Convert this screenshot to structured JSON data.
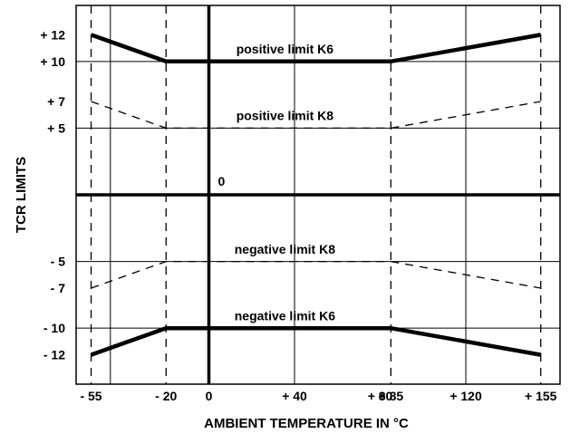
{
  "chart_data": {
    "type": "line",
    "xlabel": "AMBIENT TEMPERATURE IN °C",
    "ylabel": "TCR LIMITS",
    "xlim": [
      -62,
      164
    ],
    "ylim": [
      -14.2,
      14.2
    ],
    "x_ticks": [
      {
        "value": -55,
        "label": "- 55"
      },
      {
        "value": -20,
        "label": "- 20"
      },
      {
        "value": 0,
        "label": "0"
      },
      {
        "value": 40,
        "label": "+ 40"
      },
      {
        "value": 80,
        "label": "+ 80"
      },
      {
        "value": 85,
        "label": "+ 85"
      },
      {
        "value": 120,
        "label": "+ 120"
      },
      {
        "value": 155,
        "label": "+ 155"
      }
    ],
    "y_ticks": [
      {
        "value": 12,
        "label": "+ 12"
      },
      {
        "value": 10,
        "label": "+ 10"
      },
      {
        "value": 7,
        "label": "+ 7"
      },
      {
        "value": 5,
        "label": "+ 5"
      },
      {
        "value": -5,
        "label": "- 5"
      },
      {
        "value": -7,
        "label": "- 7"
      },
      {
        "value": -10,
        "label": "- 10"
      },
      {
        "value": -12,
        "label": "- 12"
      }
    ],
    "x_gridlines": [
      {
        "value": -55,
        "style": "dashed"
      },
      {
        "value": -20,
        "style": "dashed"
      },
      {
        "value": -46,
        "style": "solid"
      },
      {
        "value": 40,
        "style": "solid"
      },
      {
        "value": 120,
        "style": "solid"
      },
      {
        "value": 85,
        "style": "dashed"
      },
      {
        "value": 155,
        "style": "dashed"
      }
    ],
    "y_gridlines": [
      10,
      5,
      -5,
      -10
    ],
    "zero_label": "0",
    "series": [
      {
        "name": "positive limit K6",
        "style": "thick",
        "x": [
          -55,
          -20,
          85,
          155
        ],
        "y": [
          12,
          10,
          10,
          12
        ]
      },
      {
        "name": "positive limit K8",
        "style": "dashed",
        "x": [
          -55,
          -20,
          85,
          155
        ],
        "y": [
          7,
          5,
          5,
          7
        ]
      },
      {
        "name": "negative limit K8",
        "style": "dashed",
        "x": [
          -55,
          -20,
          85,
          155
        ],
        "y": [
          -7,
          -5,
          -5,
          -7
        ]
      },
      {
        "name": "negative limit K6",
        "style": "thick",
        "x": [
          -55,
          -20,
          85,
          155
        ],
        "y": [
          -12,
          -10,
          -10,
          -12
        ]
      }
    ],
    "annotations": [
      {
        "text": "positive limit K6",
        "x": 35.5,
        "y": 10.6
      },
      {
        "text": "positive limit K8",
        "x": 35.5,
        "y": 5.6
      },
      {
        "text": "negative limit K8",
        "x": 35.5,
        "y": -4.4
      },
      {
        "text": "negative limit K6",
        "x": 35.5,
        "y": -9.4
      }
    ],
    "colors": {
      "line": "#000000",
      "background": "#ffffff"
    }
  }
}
